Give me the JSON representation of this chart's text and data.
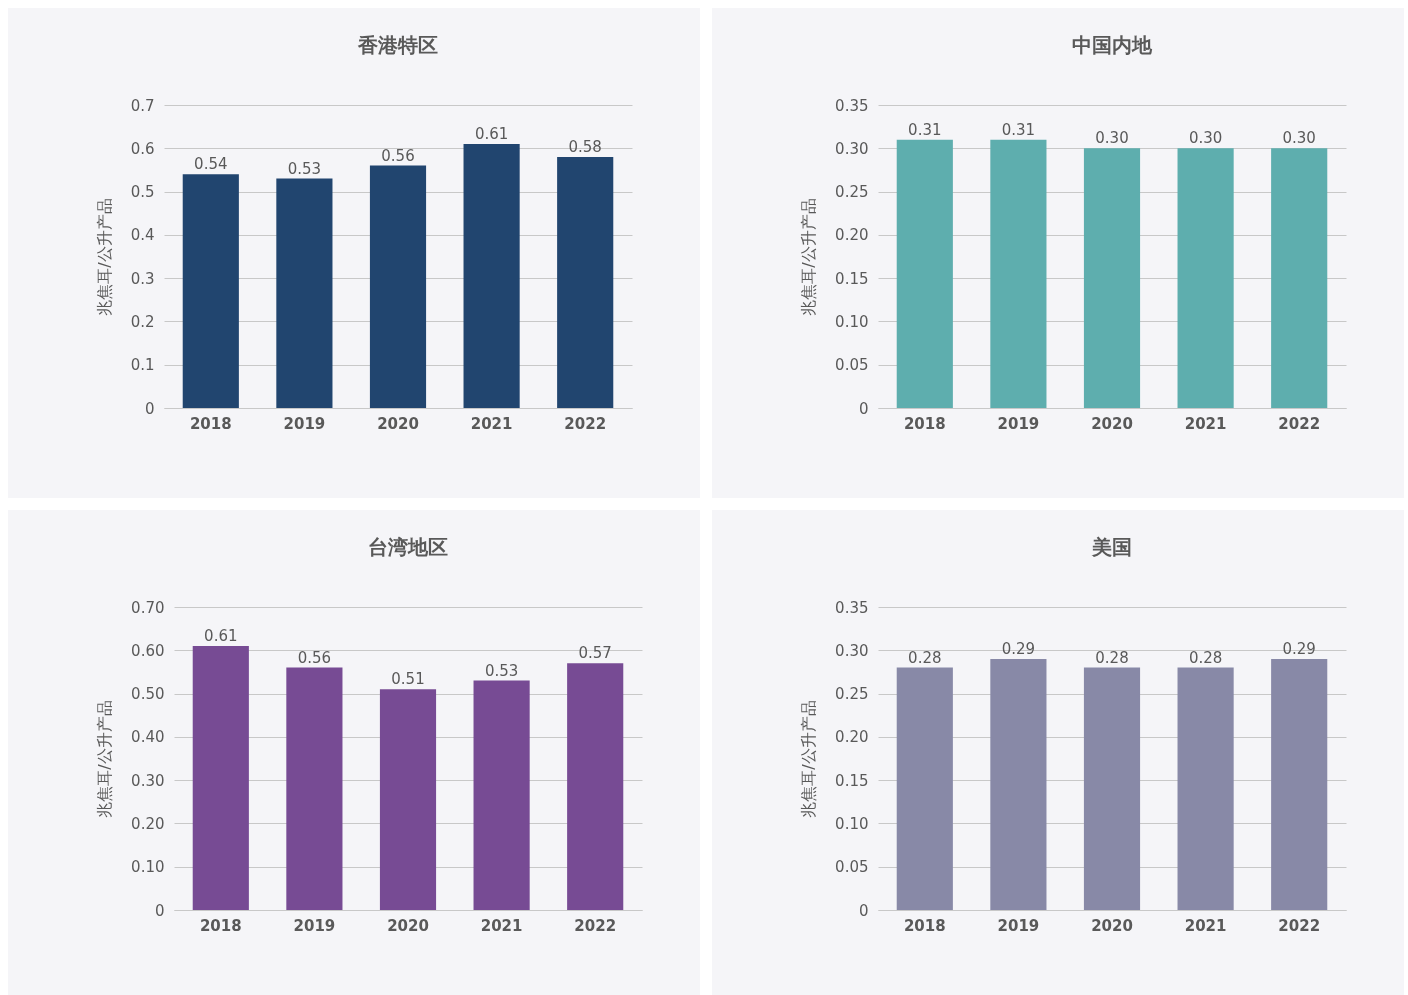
{
  "chart_data": [
    {
      "type": "bar",
      "title": "香港特区",
      "ylabel": "兆焦耳/公升产品",
      "categories": [
        "2018",
        "2019",
        "2020",
        "2021",
        "2022"
      ],
      "values": [
        0.54,
        0.53,
        0.56,
        0.61,
        0.58
      ],
      "color": "#21456f",
      "value_labels": [
        "0.54",
        "0.53",
        "0.56",
        "0.61",
        "0.58"
      ],
      "ylim": [
        0,
        0.7
      ],
      "yticks": [
        0,
        0.1,
        0.2,
        0.3,
        0.4,
        0.5,
        0.6,
        0.7
      ],
      "grid": "y"
    },
    {
      "type": "bar",
      "title": "中国内地",
      "ylabel": "兆焦耳/公升产品",
      "categories": [
        "2018",
        "2019",
        "2020",
        "2021",
        "2022"
      ],
      "values": [
        0.31,
        0.31,
        0.3,
        0.3,
        0.3
      ],
      "color": "#5eaeae",
      "value_labels": [
        "0.31",
        "0.31",
        "0.30",
        "0.30",
        "0.30"
      ],
      "ylim": [
        0,
        0.35
      ],
      "yticks": [
        0,
        0.05,
        {
          "value": 0.1,
          "label": "0.10"
        },
        0.15,
        {
          "value": 0.2,
          "label": "0.20"
        },
        0.25,
        {
          "value": 0.3,
          "label": "0.30"
        },
        0.35
      ],
      "grid": "y"
    },
    {
      "type": "bar",
      "title": "台湾地区",
      "ylabel": "兆焦耳/公升产品",
      "categories": [
        "2018",
        "2019",
        "2020",
        "2021",
        "2022"
      ],
      "values": [
        0.61,
        0.56,
        0.51,
        0.53,
        0.57
      ],
      "color": "#774b94",
      "value_labels": [
        "0.61",
        "0.56",
        "0.51",
        "0.53",
        "0.57"
      ],
      "ylim": [
        0,
        0.7
      ],
      "yticks": [
        0,
        {
          "value": 0.1,
          "label": "0.10"
        },
        {
          "value": 0.2,
          "label": "0.20"
        },
        {
          "value": 0.3,
          "label": "0.30"
        },
        {
          "value": 0.4,
          "label": "0.40"
        },
        {
          "value": 0.5,
          "label": "0.50"
        },
        {
          "value": 0.6,
          "label": "0.60"
        },
        {
          "value": 0.7,
          "label": "0.70"
        }
      ],
      "grid": "y"
    },
    {
      "type": "bar",
      "title": "美国",
      "ylabel": "兆焦耳/公升产品",
      "categories": [
        "2018",
        "2019",
        "2020",
        "2021",
        "2022"
      ],
      "values": [
        0.28,
        0.29,
        0.28,
        0.28,
        0.29
      ],
      "color": "#8889a7",
      "value_labels": [
        "0.28",
        "0.29",
        "0.28",
        "0.28",
        "0.29"
      ],
      "ylim": [
        0,
        0.35
      ],
      "yticks": [
        0,
        0.05,
        {
          "value": 0.1,
          "label": "0.10"
        },
        0.15,
        {
          "value": 0.2,
          "label": "0.20"
        },
        0.25,
        {
          "value": 0.3,
          "label": "0.30"
        },
        0.35
      ],
      "grid": "y"
    }
  ]
}
